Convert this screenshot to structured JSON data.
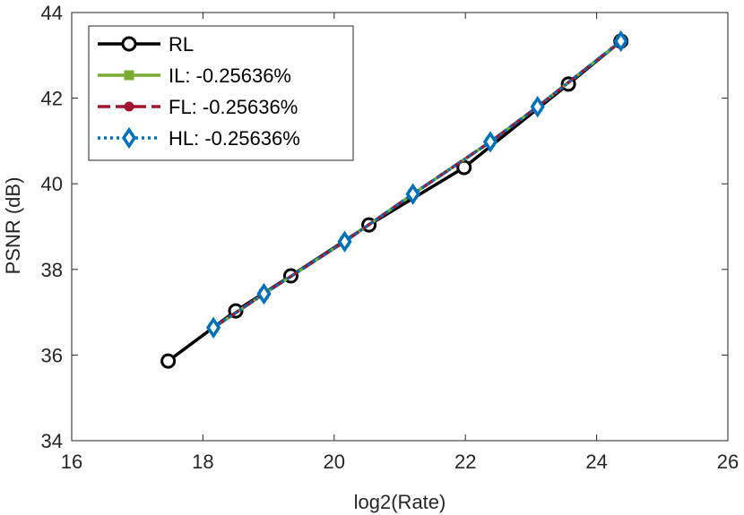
{
  "chart_data": {
    "type": "line",
    "title": "",
    "xlabel": "log2(Rate)",
    "ylabel": "PSNR (dB)",
    "xlim": [
      16,
      26
    ],
    "ylim": [
      34,
      44
    ],
    "xticks": [
      "16",
      "18",
      "20",
      "22",
      "24",
      "26"
    ],
    "yticks": [
      "34",
      "36",
      "38",
      "40",
      "42",
      "44"
    ],
    "grid": false,
    "legend_position": "top-left",
    "series": [
      {
        "name": "RL",
        "color": "#000000",
        "linestyle": "solid",
        "marker": "circle",
        "x": [
          17.47,
          18.5,
          19.34,
          20.53,
          21.98,
          23.57,
          24.37
        ],
        "y": [
          35.86,
          37.03,
          37.85,
          39.04,
          40.38,
          42.33,
          43.33
        ]
      },
      {
        "name": "IL: -0.25636%",
        "color": "#77ac30",
        "linestyle": "solid",
        "marker": "square",
        "x": [
          18.16,
          18.93,
          20.16,
          21.2,
          22.38,
          23.1,
          24.37
        ],
        "y": [
          36.64,
          37.43,
          38.65,
          39.76,
          40.98,
          41.8,
          43.33
        ]
      },
      {
        "name": "FL: -0.25636%",
        "color": "#a2142f",
        "linestyle": "dashed",
        "marker": "dot",
        "x": [
          18.16,
          18.93,
          20.16,
          21.2,
          22.38,
          23.1,
          24.37
        ],
        "y": [
          36.64,
          37.43,
          38.65,
          39.76,
          40.98,
          41.8,
          43.33
        ]
      },
      {
        "name": "HL: -0.25636%",
        "color": "#0072bd",
        "linestyle": "dotted",
        "marker": "diamond",
        "x": [
          18.16,
          18.93,
          20.16,
          21.2,
          22.38,
          23.1,
          24.37
        ],
        "y": [
          36.64,
          37.43,
          38.65,
          39.76,
          40.98,
          41.8,
          43.33
        ]
      }
    ]
  }
}
